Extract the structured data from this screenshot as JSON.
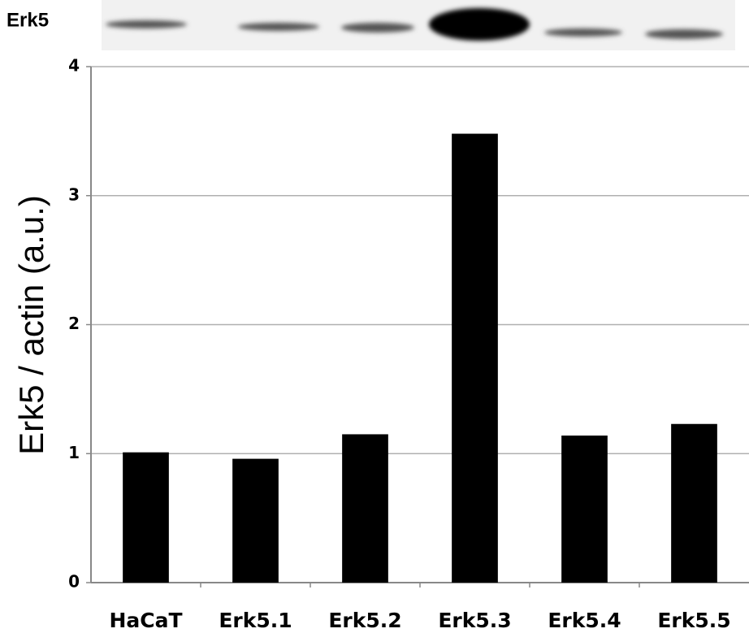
{
  "chart_data": {
    "type": "bar",
    "blot_label": "Erk5",
    "ylabel": "Erk5 / actin (a.u.)",
    "categories": [
      "HaCaT",
      "Erk5.1",
      "Erk5.2",
      "Erk5.3",
      "Erk5.4",
      "Erk5.5"
    ],
    "values": [
      1.01,
      0.96,
      1.15,
      3.48,
      1.14,
      1.23
    ],
    "color": "#000000",
    "ylim": [
      0,
      4
    ],
    "yticks": [
      0,
      1,
      2,
      3,
      4
    ],
    "grid": true
  }
}
